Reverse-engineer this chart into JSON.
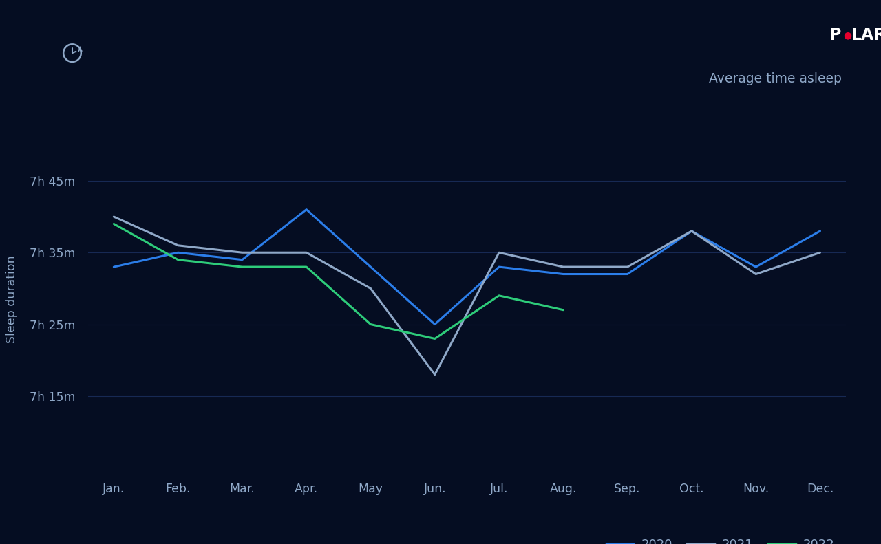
{
  "background_color": "#050d22",
  "title": "Average time asleep",
  "ylabel": "Sleep duration",
  "months": [
    "Jan.",
    "Feb.",
    "Mar.",
    "Apr.",
    "May",
    "Jun.",
    "Jul.",
    "Aug.",
    "Sep.",
    "Oct.",
    "Nov.",
    "Dec."
  ],
  "ytick_labels": [
    "7h 15m",
    "7h 25m",
    "7h 35m",
    "7h 45m"
  ],
  "ytick_values": [
    435,
    445,
    455,
    465
  ],
  "ylim_min": 425,
  "ylim_max": 472,
  "series_2020_color": "#2b7de9",
  "series_2021_color": "#8fa8c8",
  "series_2022_color": "#2ecc7a",
  "series_2020": [
    453,
    455,
    454,
    461,
    453,
    445,
    453,
    452,
    452,
    458,
    453,
    458
  ],
  "series_2021": [
    460,
    456,
    455,
    455,
    450,
    438,
    455,
    453,
    453,
    458,
    452,
    455
  ],
  "series_2022": [
    459,
    454,
    453,
    453,
    445,
    443,
    449,
    447,
    null,
    null,
    null,
    null
  ],
  "text_color": "#8fa8c8",
  "grid_color": "#1a2d5a",
  "line_width": 2.2,
  "polar_logo_color": "#ffffff",
  "polar_dot_color": "#e8002d"
}
